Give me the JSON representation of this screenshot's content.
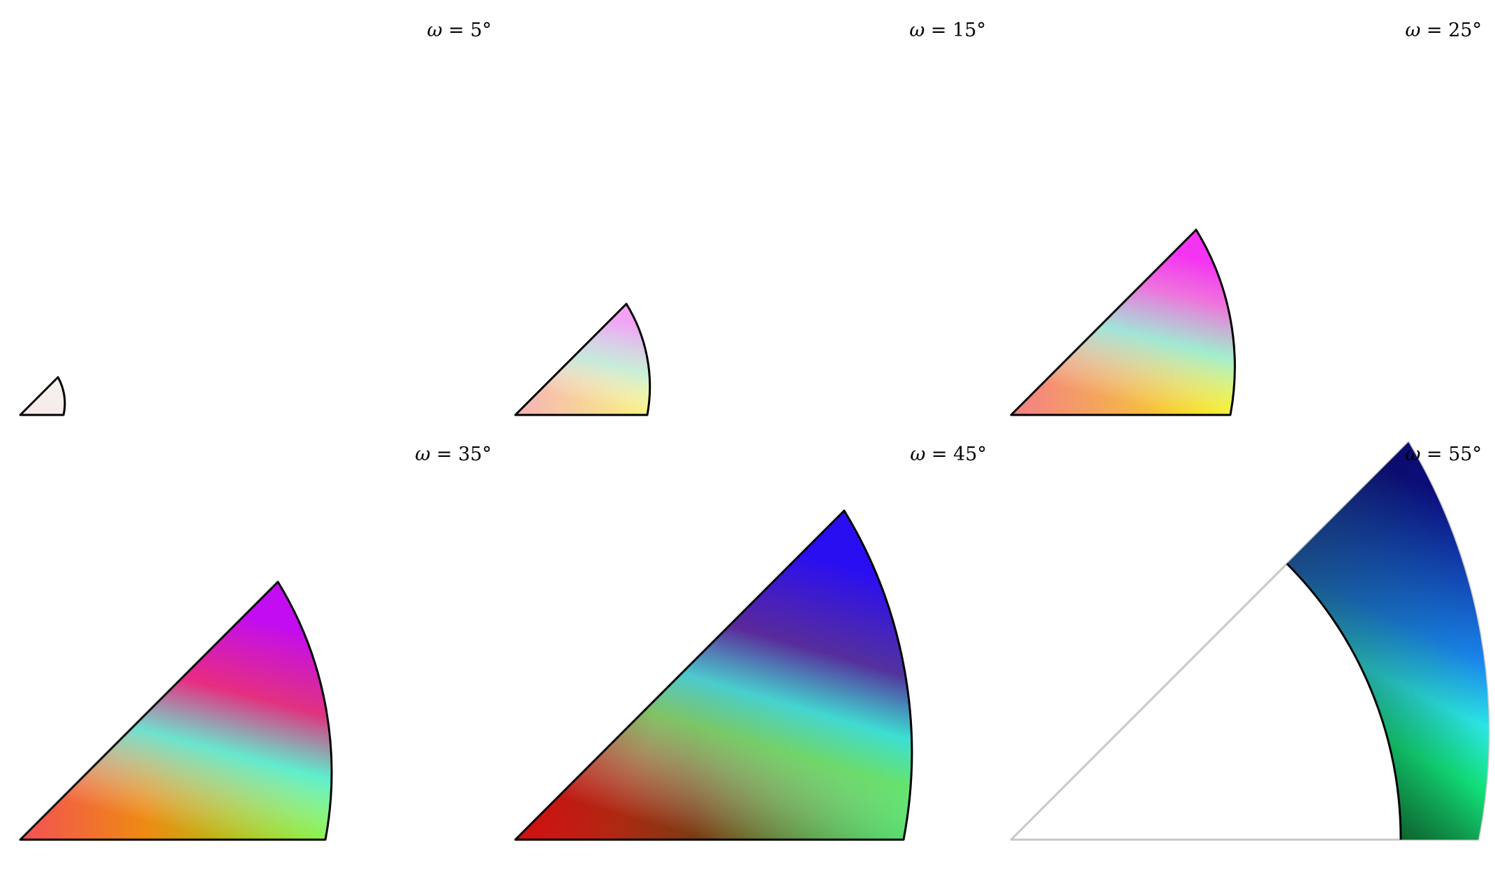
{
  "figure": {
    "panels": [
      {
        "label_symbol": "ω",
        "label_rest": " = 5°",
        "omega_deg": 5,
        "shape": "full-sector"
      },
      {
        "label_symbol": "ω",
        "label_rest": " = 15°",
        "omega_deg": 15,
        "shape": "full-sector"
      },
      {
        "label_symbol": "ω",
        "label_rest": " = 25°",
        "omega_deg": 25,
        "shape": "full-sector"
      },
      {
        "label_symbol": "ω",
        "label_rest": " = 35°",
        "omega_deg": 35,
        "shape": "full-sector"
      },
      {
        "label_symbol": "ω",
        "label_rest": " = 45°",
        "omega_deg": 45,
        "shape": "full-sector"
      },
      {
        "label_symbol": "ω",
        "label_rest": " = 55°",
        "omega_deg": 55,
        "shape": "annular-sector"
      }
    ],
    "colors": {
      "outline": "#000000",
      "inner_boundary_gray": "#c8c8c8",
      "background": "#ffffff"
    }
  }
}
